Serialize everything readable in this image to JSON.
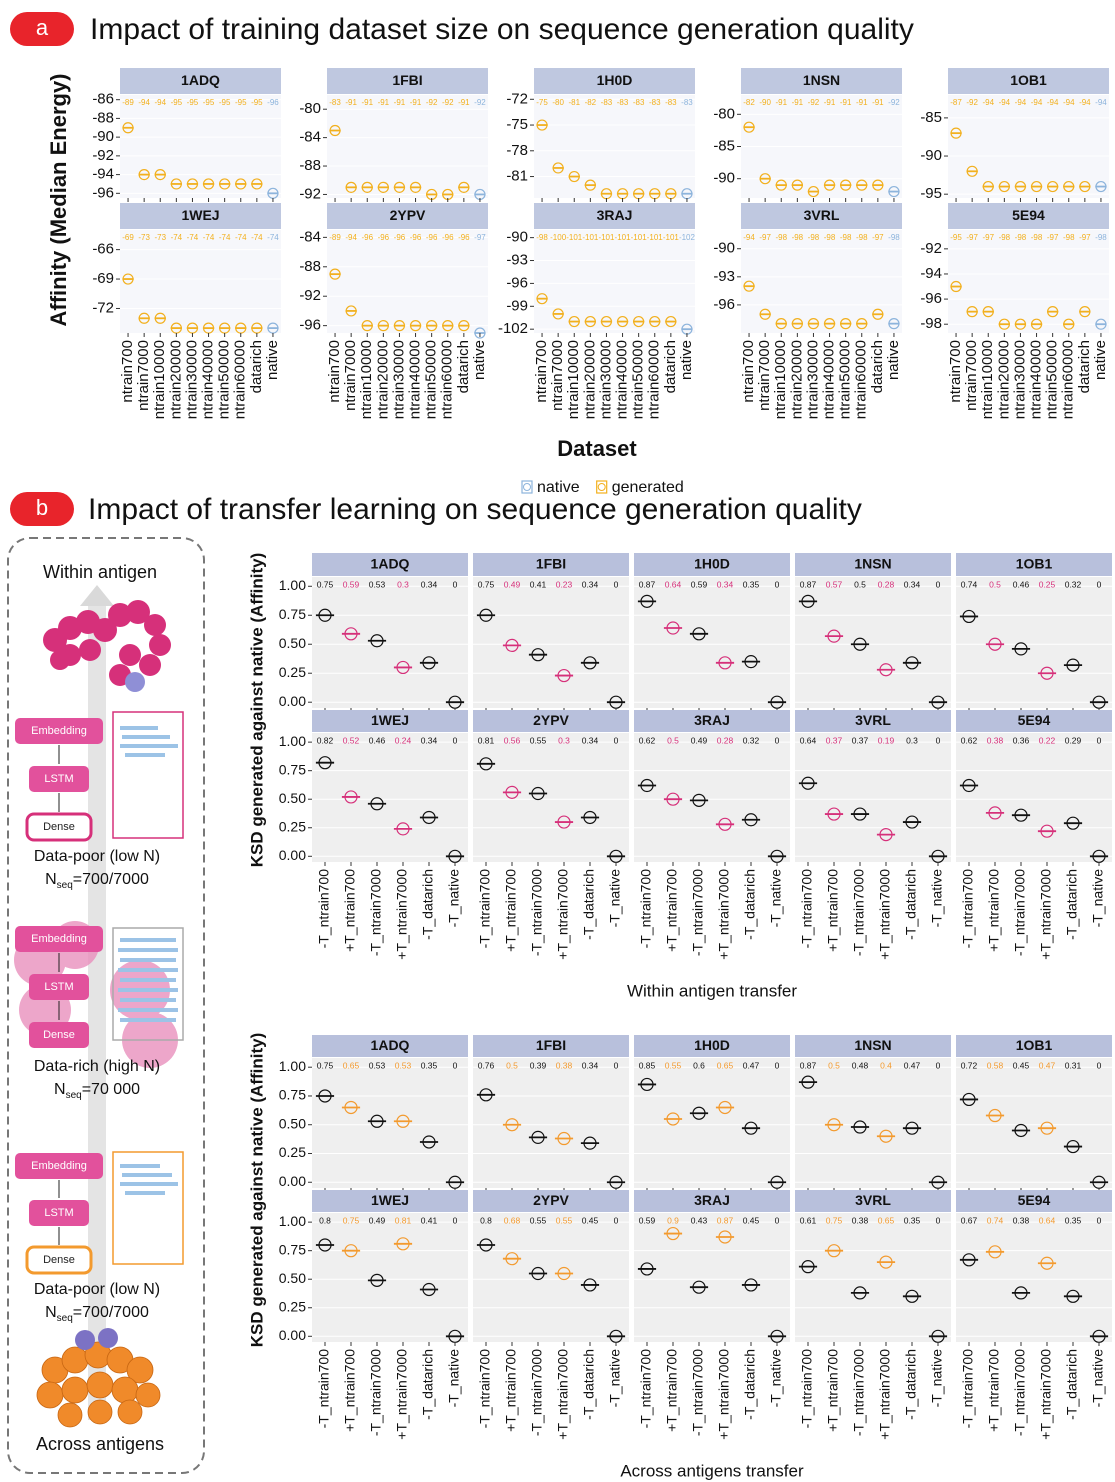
{
  "panel_a": {
    "badge": "a",
    "title": "Impact of training dataset size on sequence generation quality"
  },
  "panel_b": {
    "badge": "b",
    "title": "Impact of transfer learning on sequence generation quality",
    "diagram": {
      "top_label": "Within antigen",
      "bottom_label": "Across antigens",
      "stages": [
        {
          "layers": [
            "Embedding",
            "LSTM",
            "Dense"
          ],
          "caption": "Data-poor (low N)",
          "n_symbol": "N",
          "n_subscript": "seq",
          "n_value": "=700/7000"
        },
        {
          "layers": [
            "Embedding",
            "LSTM",
            "Dense"
          ],
          "caption": "Data-rich (high N)",
          "n_symbol": "N",
          "n_subscript": "seq",
          "n_value": "=70 000"
        },
        {
          "layers": [
            "Embedding",
            "LSTM",
            "Dense"
          ],
          "caption": "Data-poor (low N)",
          "n_symbol": "N",
          "n_subscript": "seq",
          "n_value": "=700/7000"
        }
      ]
    }
  },
  "chart_data": [
    {
      "type": "box",
      "y_label": "Affinity (Median Energy)",
      "x_label": "Dataset",
      "grid": true,
      "categories": [
        "ntrain700",
        "ntrain7000",
        "ntrain10000",
        "ntrain20000",
        "ntrain30000",
        "ntrain40000",
        "ntrain50000",
        "ntrain60000",
        "datarich",
        "native"
      ],
      "colors": [
        "#f2b01e",
        "#f2b01e",
        "#f2b01e",
        "#f2b01e",
        "#f2b01e",
        "#f2b01e",
        "#f2b01e",
        "#f2b01e",
        "#f2b01e",
        "#8db4dc"
      ],
      "legend": [
        {
          "name": "native",
          "color": "#8db4dc"
        },
        {
          "name": "generated",
          "color": "#f2b01e"
        }
      ],
      "facets": [
        {
          "title": "1ADQ",
          "values": [
            -89,
            -94,
            -94,
            -95,
            -95,
            -95,
            -95,
            -95,
            -95,
            -96
          ],
          "ylim": [
            -96.5,
            -85.5
          ],
          "yticks": [
            -96,
            -94,
            -92,
            -90,
            -88,
            -86
          ]
        },
        {
          "title": "1FBI",
          "values": [
            -83,
            -91,
            -91,
            -91,
            -91,
            -91,
            -92,
            -92,
            -91,
            -92
          ],
          "ylim": [
            -92.5,
            -78
          ],
          "yticks": [
            -92,
            -88,
            -84,
            -80
          ]
        },
        {
          "title": "1H0D",
          "values": [
            -75,
            -80,
            -81,
            -82,
            -83,
            -83,
            -83,
            -83,
            -83,
            -83
          ],
          "ylim": [
            -83.5,
            -71.5
          ],
          "yticks": [
            -81,
            -78,
            -75,
            -72
          ]
        },
        {
          "title": "1NSN",
          "values": [
            -82,
            -90,
            -91,
            -91,
            -92,
            -91,
            -91,
            -91,
            -91,
            -92
          ],
          "ylim": [
            -93,
            -77
          ],
          "yticks": [
            -90,
            -85,
            -80
          ]
        },
        {
          "title": "1OB1",
          "values": [
            -87,
            -92,
            -94,
            -94,
            -94,
            -94,
            -94,
            -94,
            -94,
            -94
          ],
          "ylim": [
            -95.5,
            -82
          ],
          "yticks": [
            -95,
            -90,
            -85
          ]
        },
        {
          "title": "1WEJ",
          "values": [
            -69,
            -73,
            -73,
            -74,
            -74,
            -74,
            -74,
            -74,
            -74,
            -74
          ],
          "ylim": [
            -74.5,
            -64
          ],
          "yticks": [
            -72,
            -69,
            -66
          ]
        },
        {
          "title": "2YPV",
          "values": [
            -89,
            -94,
            -96,
            -96,
            -96,
            -96,
            -96,
            -96,
            -96,
            -97
          ],
          "ylim": [
            -97,
            -83
          ],
          "yticks": [
            -96,
            -92,
            -88,
            -84
          ]
        },
        {
          "title": "3RAJ",
          "values": [
            -98,
            -100,
            -101,
            -101,
            -101,
            -101,
            -101,
            -101,
            -101,
            -102
          ],
          "ylim": [
            -102.5,
            -89
          ],
          "yticks": [
            -102,
            -99,
            -96,
            -93,
            -90
          ]
        },
        {
          "title": "3VRL",
          "values": [
            -94,
            -97,
            -98,
            -98,
            -98,
            -98,
            -98,
            -98,
            -97,
            -98
          ],
          "ylim": [
            -99,
            -88
          ],
          "yticks": [
            -96,
            -93,
            -90
          ]
        },
        {
          "title": "5E94",
          "values": [
            -95,
            -97,
            -97,
            -98,
            -98,
            -98,
            -97,
            -98,
            -97,
            -98
          ],
          "ylim": [
            -98.7,
            -90.5
          ],
          "yticks": [
            -98,
            -96,
            -94,
            -92
          ]
        }
      ]
    },
    {
      "type": "box",
      "y_label": "KSD generated against native (Affinity)",
      "x_label": "Within antigen transfer",
      "grid": true,
      "categories": [
        "-T_ntrain700",
        "+T_ntrain700",
        "-T_ntrain7000",
        "+T_ntrain7000",
        "-T_datarich",
        "-T_native"
      ],
      "colors": [
        "#111111",
        "#d6307a",
        "#111111",
        "#d6307a",
        "#111111",
        "#111111"
      ],
      "ylim": [
        -0.05,
        1.08
      ],
      "yticks": [
        {
          "value": 0,
          "label": "0.00"
        },
        {
          "value": 0.25,
          "label": "0.25"
        },
        {
          "value": 0.5,
          "label": "0.50"
        },
        {
          "value": 0.75,
          "label": "0.75"
        },
        {
          "value": 1,
          "label": "1.00"
        }
      ],
      "facets": [
        {
          "title": "1ADQ",
          "values": [
            0.75,
            0.59,
            0.53,
            0.3,
            0.34,
            0
          ]
        },
        {
          "title": "1FBI",
          "values": [
            0.75,
            0.49,
            0.41,
            0.23,
            0.34,
            0
          ]
        },
        {
          "title": "1H0D",
          "values": [
            0.87,
            0.64,
            0.59,
            0.34,
            0.35,
            0
          ]
        },
        {
          "title": "1NSN",
          "values": [
            0.87,
            0.57,
            0.5,
            0.28,
            0.34,
            0
          ]
        },
        {
          "title": "1OB1",
          "values": [
            0.74,
            0.5,
            0.46,
            0.25,
            0.32,
            0
          ]
        },
        {
          "title": "1WEJ",
          "values": [
            0.82,
            0.52,
            0.46,
            0.24,
            0.34,
            0
          ]
        },
        {
          "title": "2YPV",
          "values": [
            0.81,
            0.56,
            0.55,
            0.3,
            0.34,
            0
          ]
        },
        {
          "title": "3RAJ",
          "values": [
            0.62,
            0.5,
            0.49,
            0.28,
            0.32,
            0
          ]
        },
        {
          "title": "3VRL",
          "values": [
            0.64,
            0.37,
            0.37,
            0.19,
            0.3,
            0
          ]
        },
        {
          "title": "5E94",
          "values": [
            0.62,
            0.38,
            0.36,
            0.22,
            0.29,
            0
          ]
        }
      ]
    },
    {
      "type": "box",
      "y_label": "KSD generated against native (Affinity)",
      "x_label": "Across antigens transfer",
      "grid": true,
      "categories": [
        "-T_ntrain700",
        "+T_ntrain700",
        "-T_ntrain7000",
        "+T_ntrain7000",
        "-T_datarich",
        "-T_native"
      ],
      "colors": [
        "#111111",
        "#f39a2e",
        "#111111",
        "#f39a2e",
        "#111111",
        "#111111"
      ],
      "ylim": [
        -0.05,
        1.08
      ],
      "yticks": [
        {
          "value": 0,
          "label": "0.00"
        },
        {
          "value": 0.25,
          "label": "0.25"
        },
        {
          "value": 0.5,
          "label": "0.50"
        },
        {
          "value": 0.75,
          "label": "0.75"
        },
        {
          "value": 1,
          "label": "1.00"
        }
      ],
      "facets": [
        {
          "title": "1ADQ",
          "values": [
            0.75,
            0.65,
            0.53,
            0.53,
            0.35,
            0
          ]
        },
        {
          "title": "1FBI",
          "values": [
            0.76,
            0.5,
            0.39,
            0.38,
            0.34,
            0
          ]
        },
        {
          "title": "1H0D",
          "values": [
            0.85,
            0.55,
            0.6,
            0.65,
            0.47,
            0
          ]
        },
        {
          "title": "1NSN",
          "values": [
            0.87,
            0.5,
            0.48,
            0.4,
            0.47,
            0
          ]
        },
        {
          "title": "1OB1",
          "values": [
            0.72,
            0.58,
            0.45,
            0.47,
            0.31,
            0
          ]
        },
        {
          "title": "1WEJ",
          "values": [
            0.8,
            0.75,
            0.49,
            0.81,
            0.41,
            0
          ]
        },
        {
          "title": "2YPV",
          "values": [
            0.8,
            0.68,
            0.55,
            0.55,
            0.45,
            0
          ]
        },
        {
          "title": "3RAJ",
          "values": [
            0.59,
            0.9,
            0.43,
            0.87,
            0.45,
            0
          ]
        },
        {
          "title": "3VRL",
          "values": [
            0.61,
            0.75,
            0.38,
            0.65,
            0.35,
            0
          ]
        },
        {
          "title": "5E94",
          "values": [
            0.67,
            0.74,
            0.38,
            0.64,
            0.35,
            0
          ]
        }
      ]
    }
  ]
}
